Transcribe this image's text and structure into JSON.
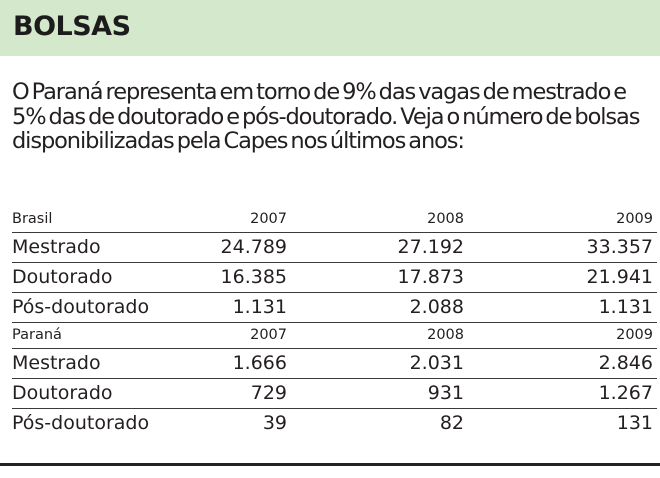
{
  "header": {
    "title": "BOLSAS",
    "background_color": "#d4e8cc"
  },
  "intro": {
    "text": "O Paraná representa em torno de 9% das vagas de mestrado e 5% das de doutorado e pós-doutorado. Veja o número de bolsas disponibilizadas pela Capes nos últimos anos:"
  },
  "table": {
    "groups": [
      {
        "region": "Brasil",
        "years": [
          "2007",
          "2008",
          "2009"
        ],
        "rows": [
          {
            "label": "Mestrado",
            "values": [
              "24.789",
              "27.192",
              "33.357"
            ]
          },
          {
            "label": "Doutorado",
            "values": [
              "16.385",
              "17.873",
              "21.941"
            ]
          },
          {
            "label": "Pós-doutorado",
            "values": [
              "1.131",
              "2.088",
              "1.131"
            ]
          }
        ]
      },
      {
        "region": "Paraná",
        "years": [
          "2007",
          "2008",
          "2009"
        ],
        "rows": [
          {
            "label": "Mestrado",
            "values": [
              "1.666",
              "2.031",
              "2.846"
            ]
          },
          {
            "label": "Doutorado",
            "values": [
              "729",
              "931",
              "1.267"
            ]
          },
          {
            "label": "Pós-doutorado",
            "values": [
              "39",
              "82",
              "131"
            ]
          }
        ]
      }
    ]
  }
}
